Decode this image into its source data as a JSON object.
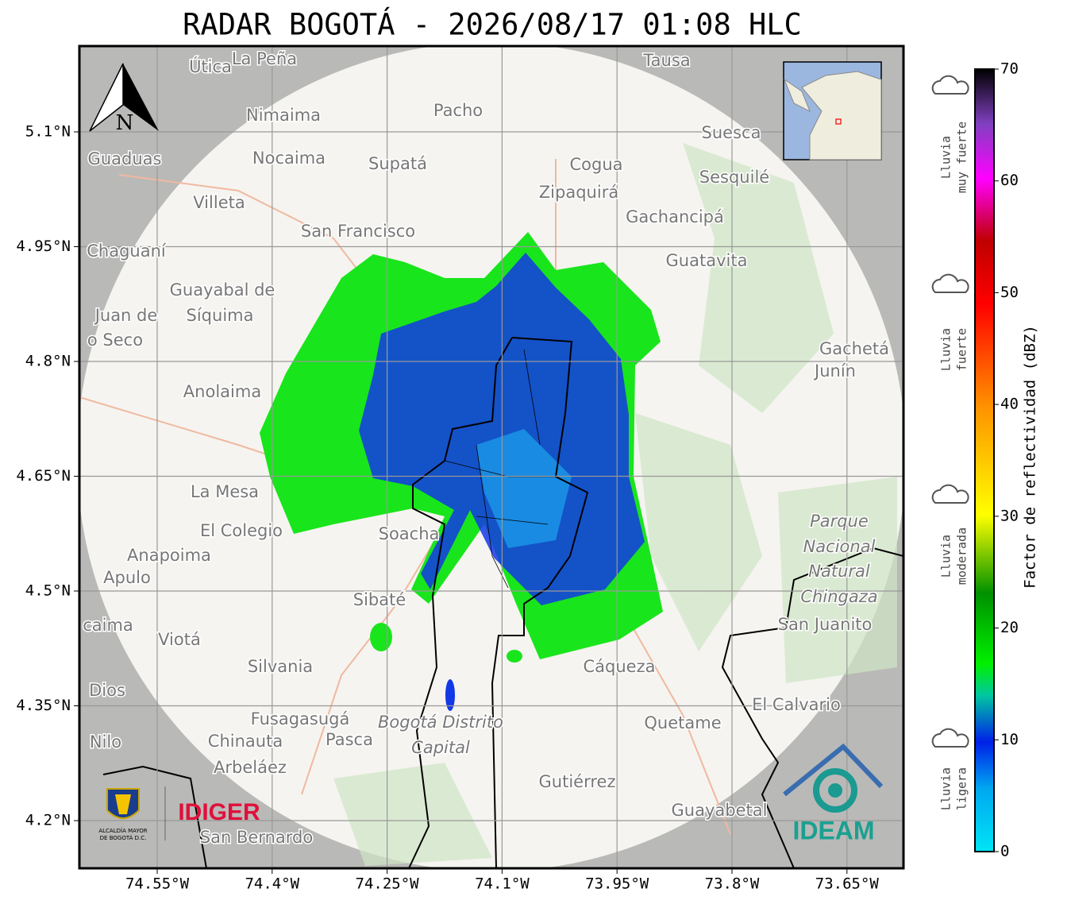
{
  "title": "RADAR BOGOTÁ - 2026/08/17 01:08 HLC",
  "map": {
    "xticks": [
      {
        "value": -74.55,
        "label": "74.55°W"
      },
      {
        "value": -74.4,
        "label": "74.4°W"
      },
      {
        "value": -74.25,
        "label": "74.25°W"
      },
      {
        "value": -74.1,
        "label": "74.1°W"
      },
      {
        "value": -73.95,
        "label": "73.95°W"
      },
      {
        "value": -73.8,
        "label": "73.8°W"
      },
      {
        "value": -73.65,
        "label": "73.65°W"
      }
    ],
    "yticks": [
      {
        "value": 5.1,
        "label": "5.1°N"
      },
      {
        "value": 4.95,
        "label": "4.95°N"
      },
      {
        "value": 4.8,
        "label": "4.8°N"
      },
      {
        "value": 4.65,
        "label": "4.65°N"
      },
      {
        "value": 4.5,
        "label": "4.5°N"
      },
      {
        "value": 4.35,
        "label": "4.35°N"
      },
      {
        "value": 4.2,
        "label": "4.2°N"
      }
    ],
    "places": [
      "La Peña",
      "Útica",
      "Tausa",
      "Pacho",
      "Nimaima",
      "Guaduas",
      "Nocaima",
      "Supatá",
      "Cogua",
      "Suesca",
      "Sesquilé",
      "Zipaquirá",
      "Villeta",
      "Gachancipá",
      "San Francisco",
      "Chaguaní",
      "Guatavita",
      "Guayabal de",
      "Síquima",
      "Juan de",
      "o Seco",
      "Gachetá",
      "Junín",
      "Anolaima",
      "La Mesa",
      "El Colegio",
      "Soacha",
      "Anapoima",
      "Apulo",
      "Parque",
      "Nacional",
      "Natural",
      "Chingaza",
      "Sibaté",
      "San Juanito",
      "caima",
      "Viotá",
      "Silvania",
      "Cáqueza",
      "Dios",
      "El Calvario",
      "Fusagasugá",
      "Bogotá Distrito",
      "Capital",
      "Quetame",
      "Nilo",
      "Chinauta",
      "Pasca",
      "Arbeláez",
      "Gutiérrez",
      "Guayabetal",
      "San Bernardo"
    ],
    "north": "N",
    "logos": {
      "alcaldia": [
        "ALCALDÍA MAYOR",
        "DE BOGOTÁ D.C."
      ],
      "idiger": "IDIGER",
      "ideam": "IDEAM"
    }
  },
  "colorbar": {
    "label": "Factor de reflectividad (dBZ)",
    "lim": [
      0,
      70
    ],
    "ticks": [
      0,
      10,
      20,
      30,
      40,
      50,
      60,
      70
    ],
    "classes": [
      [
        "Lluvia",
        "muy fuerte"
      ],
      [
        "Lluvia",
        "fuerte"
      ],
      [
        "Lluvia",
        "moderada"
      ],
      [
        "Lluvia",
        "ligera"
      ]
    ]
  }
}
